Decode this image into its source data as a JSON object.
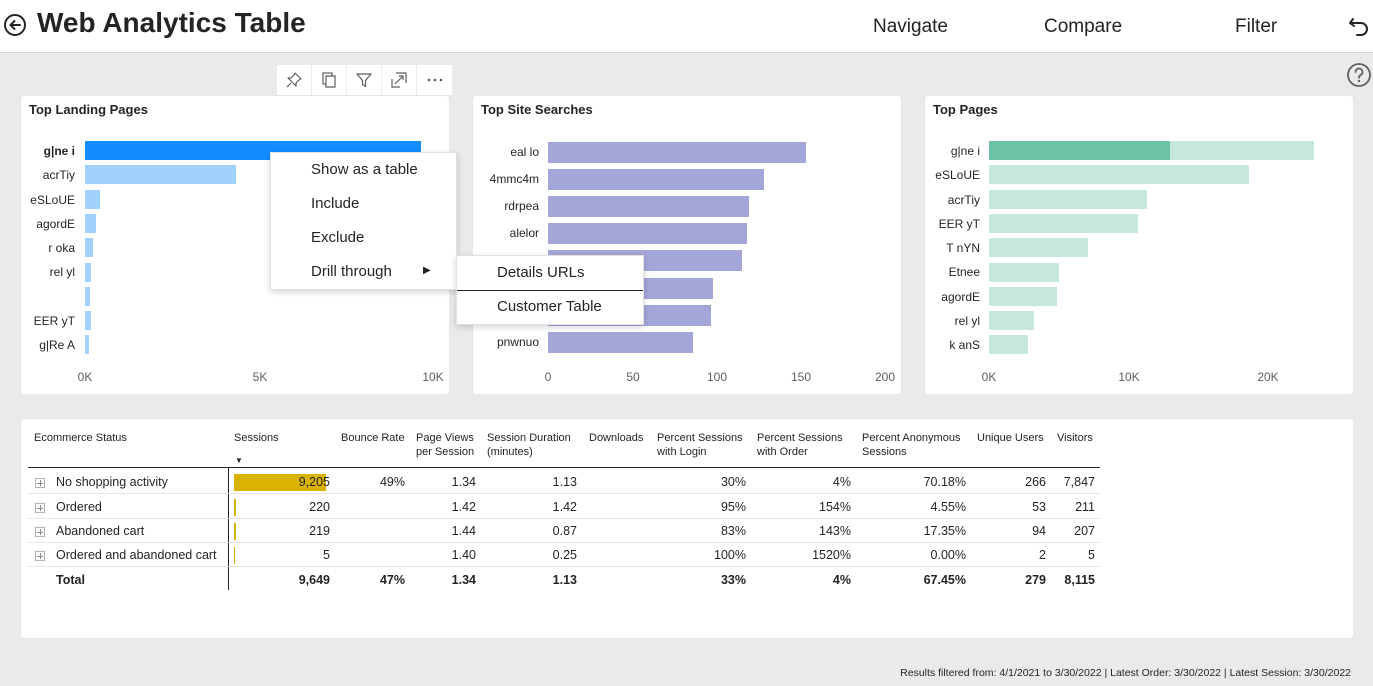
{
  "header": {
    "title": "Web Analytics Table",
    "nav": [
      "Navigate",
      "Compare",
      "Filter"
    ]
  },
  "visual_toolbar": [
    "pin-icon",
    "copy-icon",
    "filter-icon",
    "focus-mode-icon",
    "more-options-icon"
  ],
  "charts": {
    "landing": {
      "title": "Top Landing Pages",
      "labels": [
        "g|ne i",
        "acrTiy",
        "eSLoUE",
        "agordE",
        "r oka",
        "rel yl",
        "",
        "EER yT",
        "g|Re A"
      ],
      "ticks": [
        "0K",
        "5K",
        "10K"
      ]
    },
    "searches": {
      "title": "Top Site Searches",
      "labels": [
        "eal lo",
        "4mmc4m",
        "rdrpea",
        "alelor",
        "",
        "",
        "",
        "pnwnuo"
      ],
      "ticks": [
        "0",
        "50",
        "100",
        "150",
        "200"
      ]
    },
    "pages": {
      "title": "Top Pages",
      "labels": [
        "g|ne i",
        "eSLoUE",
        "acrTiy",
        "EER yT",
        "T nYN",
        "Etnee",
        "agordE",
        "rel yl",
        "k anS"
      ],
      "ticks": [
        "0K",
        "10K",
        "20K"
      ]
    }
  },
  "chart_data": [
    {
      "type": "bar",
      "title": "Top Landing Pages",
      "orientation": "horizontal",
      "categories": [
        "g|ne i",
        "acrTiy",
        "eSLoUE",
        "agordE",
        "r oka",
        "rel yl",
        "",
        "EER yT",
        "g|Re A"
      ],
      "values": [
        9800,
        4400,
        450,
        320,
        230,
        180,
        150,
        170,
        120
      ],
      "xlim": [
        0,
        10000
      ],
      "highlighted": "g|ne i",
      "colors": {
        "highlight": "#118dff",
        "bar": "#a0d1ff"
      }
    },
    {
      "type": "bar",
      "title": "Top Site Searches",
      "orientation": "horizontal",
      "categories": [
        "eal lo",
        "4mmc4m",
        "rdrpea",
        "alelor",
        "",
        "",
        "",
        "pnwnuo"
      ],
      "values": [
        153,
        128,
        119,
        118,
        115,
        98,
        97,
        86
      ],
      "xlim": [
        0,
        200
      ],
      "colors": {
        "bar": "#a4a6da"
      }
    },
    {
      "type": "bar",
      "title": "Top Pages",
      "orientation": "horizontal",
      "categories": [
        "g|ne i",
        "eSLoUE",
        "acrTiy",
        "EER yT",
        "T nYN",
        "Etnee",
        "agordE",
        "rel yl",
        "k anS"
      ],
      "values": [
        23300,
        18600,
        11300,
        10700,
        7100,
        5000,
        4900,
        3200,
        2800
      ],
      "highlight_values": [
        13000,
        0,
        0,
        0,
        0,
        0,
        0,
        0,
        0
      ],
      "xlim": [
        0,
        25000
      ],
      "colors": {
        "highlight": "#6cc4a4",
        "bar": "#c6e8dc"
      }
    }
  ],
  "context_menu": {
    "items": [
      "Show as a table",
      "Include",
      "Exclude",
      "Drill through"
    ],
    "submenu": [
      "Details URLs",
      "Customer Table"
    ]
  },
  "matrix": {
    "headers": [
      "Ecommerce Status",
      "Sessions",
      "Bounce Rate",
      "Page Views\nper Session",
      "Session Duration\n(minutes)",
      "Downloads",
      "Percent Sessions\nwith Login",
      "Percent Sessions\nwith Order",
      "Percent Anonymous\nSessions",
      "Unique Users",
      "Visitors"
    ],
    "rows": [
      {
        "status": "No shopping activity",
        "sessions": "9,205",
        "sessions_ratio": 0.954,
        "bounce": "49%",
        "pvps": "1.34",
        "duration": "1.13",
        "downloads": "",
        "login": "30%",
        "order": "4%",
        "anon": "70.18%",
        "users": "266",
        "visitors": "7,847"
      },
      {
        "status": "Ordered",
        "sessions": "220",
        "sessions_ratio": 0.023,
        "bounce": "",
        "pvps": "1.42",
        "duration": "1.42",
        "downloads": "",
        "login": "95%",
        "order": "154%",
        "anon": "4.55%",
        "users": "53",
        "visitors": "211"
      },
      {
        "status": "Abandoned cart",
        "sessions": "219",
        "sessions_ratio": 0.023,
        "bounce": "",
        "pvps": "1.44",
        "duration": "0.87",
        "downloads": "",
        "login": "83%",
        "order": "143%",
        "anon": "17.35%",
        "users": "94",
        "visitors": "207"
      },
      {
        "status": "Ordered and abandoned cart",
        "sessions": "5",
        "sessions_ratio": 0.001,
        "bounce": "",
        "pvps": "1.40",
        "duration": "0.25",
        "downloads": "",
        "login": "100%",
        "order": "1520%",
        "anon": "0.00%",
        "users": "2",
        "visitors": "5"
      }
    ],
    "total": {
      "status": "Total",
      "sessions": "9,649",
      "bounce": "47%",
      "pvps": "1.34",
      "duration": "1.13",
      "downloads": "",
      "login": "33%",
      "order": "4%",
      "anon": "67.45%",
      "users": "279",
      "visitors": "8,115"
    },
    "colors": {
      "sessions_bar": "#d9b300"
    }
  },
  "footer": "Results filtered from: 4/1/2021 to 3/30/2022  |  Latest Order: 3/30/2022  |  Latest Session: 3/30/2022"
}
